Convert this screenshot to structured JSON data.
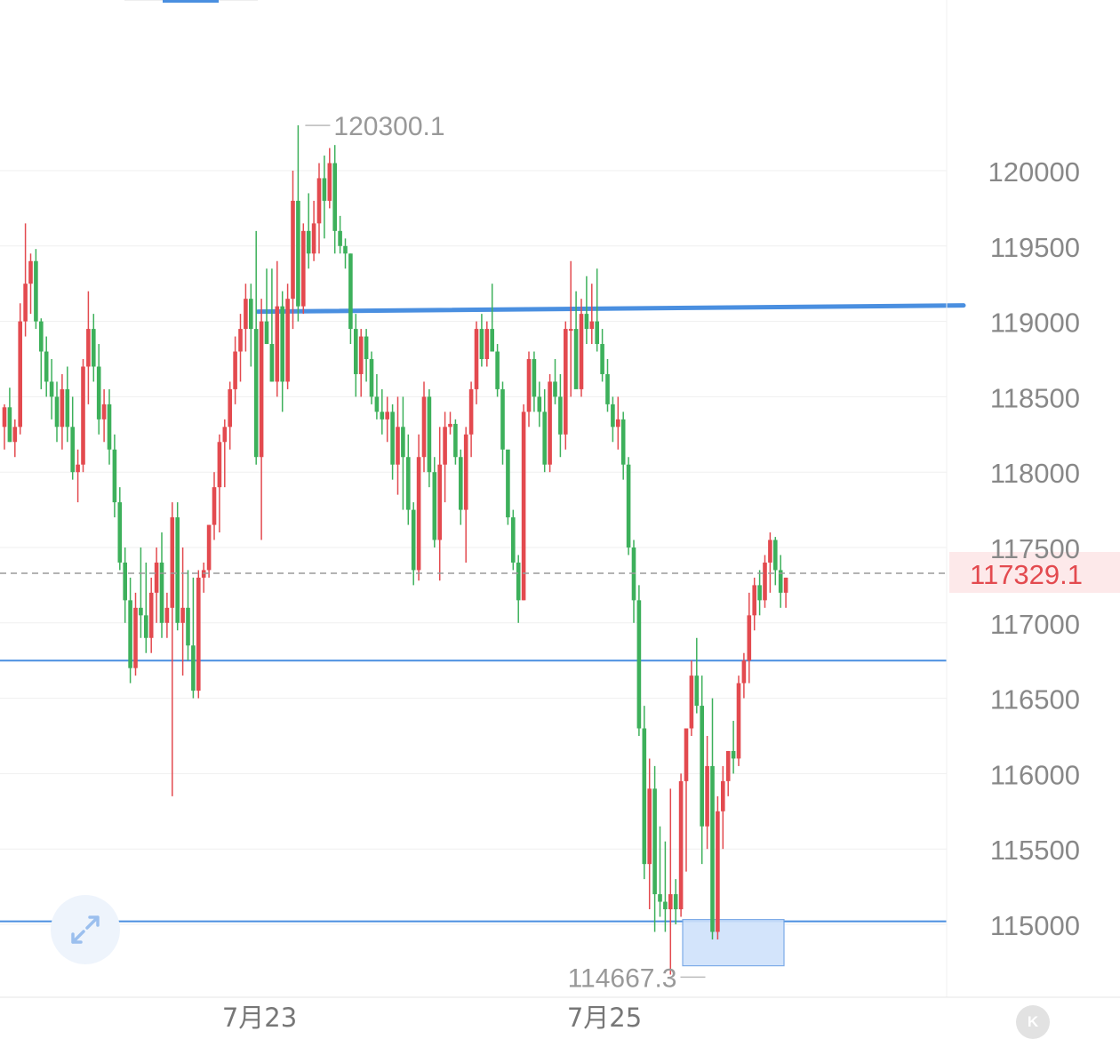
{
  "chart_data": {
    "type": "candlestick",
    "title": "",
    "ylim": [
      114350,
      121000
    ],
    "y_ticks": [
      120000,
      119500,
      119000,
      118500,
      118000,
      117500,
      117000,
      116500,
      116000,
      115500,
      115000
    ],
    "y_tick_labels": [
      "120000",
      "119500",
      "119000",
      "118500",
      "118000",
      "117500",
      "117000",
      "116500",
      "116000",
      "115500",
      "115000"
    ],
    "x_labels": [
      "7月23",
      "7月25"
    ],
    "current_price": "117329.1",
    "high_label": "120300.1",
    "low_label": "114667.3",
    "grid": true,
    "colors": {
      "up": "#e34a4f",
      "down": "#3db05b",
      "price_tag_bg": "#fde9ea",
      "price_tag_text": "#e34a4f",
      "level_line": "#4a8fe0",
      "axis_text": "#888888",
      "grid": "#efefef"
    },
    "levels": [
      119100,
      116750,
      115020
    ],
    "levels_note": "",
    "candles": [
      [
        118300,
        118450,
        118150,
        118430
      ],
      [
        118430,
        118560,
        118200,
        118200
      ],
      [
        118200,
        118350,
        118100,
        118300
      ],
      [
        118300,
        119120,
        118250,
        119000
      ],
      [
        119000,
        119650,
        118900,
        119250
      ],
      [
        119250,
        119450,
        119050,
        119400
      ],
      [
        119400,
        119480,
        118950,
        119000
      ],
      [
        119000,
        119020,
        118550,
        118800
      ],
      [
        118800,
        118900,
        118500,
        118600
      ],
      [
        118600,
        118750,
        118350,
        118500
      ],
      [
        118500,
        118600,
        118200,
        118300
      ],
      [
        118300,
        118650,
        118150,
        118550
      ],
      [
        118550,
        118700,
        118200,
        118300
      ],
      [
        118300,
        118500,
        117950,
        118000
      ],
      [
        118000,
        118150,
        117800,
        118050
      ],
      [
        118050,
        118750,
        118000,
        118700
      ],
      [
        118700,
        119200,
        118450,
        118950
      ],
      [
        118950,
        119050,
        118600,
        118700
      ],
      [
        118700,
        118850,
        118250,
        118350
      ],
      [
        118350,
        118550,
        118200,
        118450
      ],
      [
        118450,
        118550,
        118050,
        118150
      ],
      [
        118150,
        118250,
        117700,
        117800
      ],
      [
        117800,
        117900,
        117350,
        117400
      ],
      [
        117400,
        117500,
        117000,
        117150
      ],
      [
        117150,
        117300,
        116600,
        116700
      ],
      [
        116700,
        117200,
        116650,
        117100
      ],
      [
        117100,
        117500,
        116900,
        117050
      ],
      [
        117050,
        117400,
        116800,
        116900
      ],
      [
        116900,
        117300,
        116800,
        117200
      ],
      [
        117200,
        117500,
        117000,
        117400
      ],
      [
        117400,
        117600,
        116900,
        117000
      ],
      [
        117000,
        117200,
        116900,
        117100
      ],
      [
        117100,
        117800,
        115850,
        117700
      ],
      [
        117700,
        117800,
        116950,
        117000
      ],
      [
        117000,
        117500,
        116650,
        117100
      ],
      [
        117100,
        117350,
        116750,
        116850
      ],
      [
        116850,
        117300,
        116500,
        116550
      ],
      [
        116550,
        117350,
        116500,
        117300
      ],
      [
        117300,
        117400,
        117200,
        117350
      ],
      [
        117350,
        117650,
        117300,
        117650
      ],
      [
        117650,
        118000,
        117550,
        117900
      ],
      [
        117900,
        118250,
        117600,
        118200
      ],
      [
        118200,
        118350,
        117900,
        118300
      ],
      [
        118300,
        118600,
        118150,
        118550
      ],
      [
        118550,
        118900,
        118450,
        118800
      ],
      [
        118800,
        119050,
        118600,
        118950
      ],
      [
        118950,
        119250,
        118800,
        119150
      ],
      [
        119150,
        119250,
        118700,
        118950
      ],
      [
        118950,
        119600,
        118050,
        118100
      ],
      [
        118100,
        119150,
        117550,
        119000
      ],
      [
        119000,
        119350,
        118850,
        118850
      ],
      [
        118850,
        119350,
        118600,
        118600
      ],
      [
        118600,
        119400,
        118500,
        119100
      ],
      [
        119100,
        119200,
        118400,
        118600
      ],
      [
        118600,
        119250,
        118550,
        119150
      ],
      [
        119150,
        120000,
        118950,
        119800
      ],
      [
        119800,
        120301,
        119000,
        119100
      ],
      [
        119100,
        119650,
        119050,
        119600
      ],
      [
        119600,
        119850,
        119350,
        119450
      ],
      [
        119450,
        119800,
        119400,
        119650
      ],
      [
        119650,
        120050,
        119450,
        119950
      ],
      [
        119950,
        120100,
        119550,
        119800
      ],
      [
        119800,
        120150,
        119750,
        120050
      ],
      [
        120050,
        120170,
        119450,
        119600
      ],
      [
        119600,
        119700,
        119450,
        119500
      ],
      [
        119500,
        119550,
        119350,
        119450
      ],
      [
        119450,
        119450,
        118850,
        118950
      ],
      [
        118950,
        119050,
        118500,
        118650
      ],
      [
        118650,
        118950,
        118500,
        118900
      ],
      [
        118900,
        118950,
        118600,
        118750
      ],
      [
        118750,
        118800,
        118450,
        118500
      ],
      [
        118500,
        118650,
        118350,
        118400
      ],
      [
        118400,
        118550,
        118250,
        118350
      ],
      [
        118350,
        118500,
        118200,
        118400
      ],
      [
        118400,
        118450,
        117950,
        118050
      ],
      [
        118050,
        118500,
        117850,
        118300
      ],
      [
        118300,
        118500,
        117750,
        118100
      ],
      [
        118100,
        118250,
        117650,
        117750
      ],
      [
        117750,
        117800,
        117250,
        117350
      ],
      [
        117350,
        118250,
        117280,
        118100
      ],
      [
        118100,
        118600,
        118000,
        118500
      ],
      [
        118500,
        118550,
        117900,
        118000
      ],
      [
        118000,
        118100,
        117500,
        117550
      ],
      [
        117550,
        118300,
        117280,
        118050
      ],
      [
        118050,
        118400,
        117800,
        118300
      ],
      [
        118300,
        118400,
        118250,
        118320
      ],
      [
        118320,
        118350,
        118050,
        118100
      ],
      [
        118100,
        118150,
        117650,
        117750
      ],
      [
        117750,
        118300,
        117400,
        118250
      ],
      [
        118250,
        118600,
        118100,
        118550
      ],
      [
        118550,
        119000,
        118450,
        118950
      ],
      [
        118950,
        119050,
        118700,
        118750
      ],
      [
        118750,
        119000,
        118700,
        118950
      ],
      [
        118950,
        119250,
        118800,
        118800
      ],
      [
        118800,
        118850,
        118500,
        118550
      ],
      [
        118550,
        118600,
        118050,
        118150
      ],
      [
        118150,
        118100,
        117650,
        117700
      ],
      [
        117700,
        117750,
        117350,
        117400
      ],
      [
        117400,
        117450,
        117000,
        117150
      ],
      [
        117150,
        118450,
        117150,
        118400
      ],
      [
        118400,
        118800,
        118300,
        118750
      ],
      [
        118750,
        118800,
        118400,
        118500
      ],
      [
        118500,
        118600,
        118300,
        118400
      ],
      [
        118400,
        118550,
        118000,
        118050
      ],
      [
        118050,
        118650,
        118000,
        118600
      ],
      [
        118600,
        118750,
        118450,
        118500
      ],
      [
        118500,
        118650,
        118100,
        118250
      ],
      [
        118250,
        119000,
        118150,
        118950
      ],
      [
        118950,
        119400,
        118500,
        118950
      ],
      [
        118950,
        119200,
        118600,
        118550
      ],
      [
        118550,
        119150,
        118500,
        119050
      ],
      [
        119050,
        119300,
        118850,
        118950
      ],
      [
        118950,
        119250,
        118850,
        119000
      ],
      [
        119000,
        119350,
        118800,
        118850
      ],
      [
        118850,
        118950,
        118600,
        118650
      ],
      [
        118650,
        118750,
        118400,
        118450
      ],
      [
        118450,
        118500,
        118200,
        118300
      ],
      [
        118300,
        118500,
        118150,
        118350
      ],
      [
        118350,
        118400,
        117950,
        118050
      ],
      [
        118050,
        118100,
        117450,
        117500
      ],
      [
        117500,
        117550,
        117000,
        117150
      ],
      [
        117150,
        117250,
        116250,
        116300
      ],
      [
        116300,
        116450,
        115300,
        115400
      ],
      [
        115400,
        116100,
        115100,
        115900
      ],
      [
        115900,
        116050,
        114950,
        115200
      ],
      [
        115200,
        115650,
        115050,
        115150
      ],
      [
        115150,
        115550,
        114950,
        115100
      ],
      [
        115100,
        115900,
        114667,
        115200
      ],
      [
        115200,
        115300,
        115000,
        115100
      ],
      [
        115100,
        116000,
        115050,
        115950
      ],
      [
        115950,
        116250,
        115350,
        116300
      ],
      [
        116300,
        116750,
        116250,
        116650
      ],
      [
        116650,
        116900,
        116400,
        116450
      ],
      [
        116450,
        116650,
        115400,
        115650
      ],
      [
        115650,
        116250,
        115500,
        116050
      ],
      [
        116050,
        116500,
        114900,
        114950
      ],
      [
        114950,
        115850,
        114900,
        115750
      ],
      [
        115750,
        116050,
        115500,
        115950
      ],
      [
        115950,
        116150,
        115850,
        116150
      ],
      [
        116150,
        116350,
        116000,
        116100
      ],
      [
        116100,
        116650,
        116050,
        116600
      ],
      [
        116600,
        116800,
        116500,
        116750
      ],
      [
        116750,
        117200,
        116600,
        117050
      ],
      [
        117050,
        117300,
        116950,
        117250
      ],
      [
        117250,
        117350,
        117050,
        117150
      ],
      [
        117150,
        117450,
        117100,
        117400
      ],
      [
        117400,
        117600,
        117200,
        117550
      ],
      [
        117550,
        117570,
        117250,
        117350
      ],
      [
        117350,
        117450,
        117100,
        117200
      ],
      [
        117200,
        117300,
        117100,
        117300
      ]
    ]
  },
  "ui": {
    "expand_icon": "expand-arrows-icon",
    "logo_icon": "k-logo-icon",
    "logo_letter": "K"
  }
}
